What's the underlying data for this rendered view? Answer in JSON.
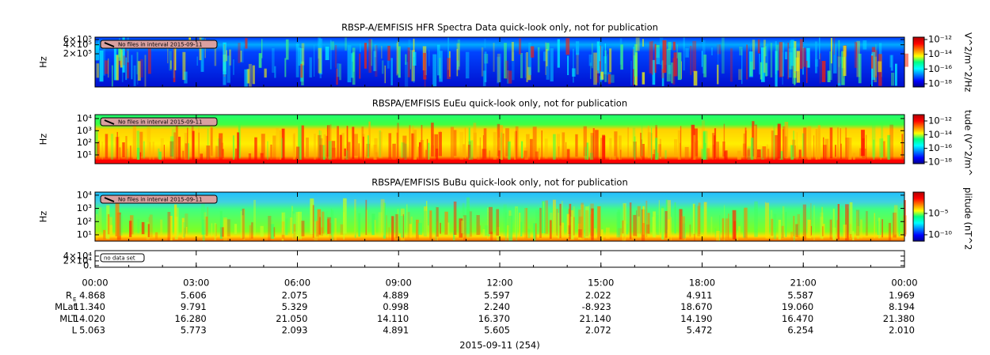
{
  "chart_data": [
    {
      "type": "spectrogram",
      "title": "RBSP-A/EMFISIS  HFR Spectra Data quick-look only, not for publication",
      "ylabel": "Hz",
      "log_y": true,
      "ylim": [
        15500,
        720000
      ],
      "yticks": [
        {
          "value": 600000,
          "label": "6×10⁵"
        },
        {
          "value": 400000,
          "label": "4×10⁵"
        },
        {
          "value": 200000,
          "label": "2×10⁵"
        }
      ],
      "notice": "No files in interval 2015-09-11",
      "colorbar": {
        "label": "V^2/m^2/Hz",
        "zlim": [
          -18.43,
          -11.68
        ],
        "zticks": [
          {
            "value": -12,
            "label": "10⁻¹²"
          },
          {
            "value": -14,
            "label": "10⁻¹⁴"
          },
          {
            "value": -16,
            "label": "10⁻¹⁶"
          },
          {
            "value": -18,
            "label": "10⁻¹⁸"
          }
        ]
      }
    },
    {
      "type": "spectrogram",
      "title": "RBSPA/EMFISIS  EuEu quick-look only, not for publication",
      "ylabel": "Hz",
      "log_y": true,
      "ylim": [
        1.9,
        21000
      ],
      "yticks": [
        {
          "value": 10000,
          "label": "10⁴"
        },
        {
          "value": 1000,
          "label": "10³"
        },
        {
          "value": 100,
          "label": "10²"
        },
        {
          "value": 10,
          "label": "10¹"
        }
      ],
      "notice": "No files in interval 2015-09-11",
      "colorbar": {
        "label": "tude (V^2/m^",
        "zlim": [
          -18.23,
          -11.08
        ],
        "zticks": [
          {
            "value": -12,
            "label": "10⁻¹²"
          },
          {
            "value": -14,
            "label": "10⁻¹⁴"
          },
          {
            "value": -16,
            "label": "10⁻¹⁶"
          },
          {
            "value": -18,
            "label": "10⁻¹⁸"
          }
        ]
      }
    },
    {
      "type": "spectrogram",
      "title": "RBSPA/EMFISIS  BuBu quick-look only, not for publication",
      "ylabel": "Hz",
      "log_y": true,
      "ylim": [
        3.3,
        17000
      ],
      "yticks": [
        {
          "value": 10000,
          "label": "10⁴"
        },
        {
          "value": 1000,
          "label": "10³"
        },
        {
          "value": 100,
          "label": "10²"
        },
        {
          "value": 10,
          "label": "10¹"
        }
      ],
      "notice": "No files in interval 2015-09-11",
      "colorbar": {
        "label": "plitude (nT^2",
        "zlim": [
          -11.5,
          0
        ],
        "zticks": [
          {
            "value": -5,
            "label": "10⁻⁵"
          },
          {
            "value": -10,
            "label": "10⁻¹⁰"
          }
        ]
      }
    },
    {
      "type": "empty",
      "log_y": false,
      "ylim": [
        -6700,
        63000
      ],
      "yticks": [
        {
          "value": 40000,
          "label": "4×10⁴"
        },
        {
          "value": 20000,
          "label": "2×10⁴"
        },
        {
          "value": 0,
          "label": "0."
        }
      ],
      "notice": "no data set"
    }
  ],
  "time_axis": {
    "xlim": [
      0,
      24
    ],
    "xticks": [
      {
        "value": 0,
        "label": "00:00"
      },
      {
        "value": 3,
        "label": "03:00"
      },
      {
        "value": 6,
        "label": "06:00"
      },
      {
        "value": 9,
        "label": "09:00"
      },
      {
        "value": 12,
        "label": "12:00"
      },
      {
        "value": 15,
        "label": "15:00"
      },
      {
        "value": 18,
        "label": "18:00"
      },
      {
        "value": 21,
        "label": "21:00"
      },
      {
        "value": 24,
        "label": "00:00"
      }
    ]
  },
  "ephemeris": [
    {
      "label": "R",
      "subscript": "E",
      "values": [
        "4.868",
        "5.606",
        "2.075",
        "4.889",
        "5.597",
        "2.022",
        "4.911",
        "5.587",
        "1.969"
      ]
    },
    {
      "label": "MLat",
      "values": [
        "11.340",
        "9.791",
        "5.329",
        "0.998",
        "2.240",
        "-8.923",
        "18.670",
        "19.060",
        "8.194"
      ]
    },
    {
      "label": "MLT",
      "values": [
        "14.020",
        "16.280",
        "21.050",
        "14.110",
        "16.370",
        "21.140",
        "14.190",
        "16.470",
        "21.380"
      ]
    },
    {
      "label": "L",
      "values": [
        "5.063",
        "5.773",
        "2.093",
        "4.891",
        "5.605",
        "2.072",
        "5.472",
        "6.254",
        "2.010"
      ]
    }
  ],
  "xlabel": "2015-09-11 (254)"
}
